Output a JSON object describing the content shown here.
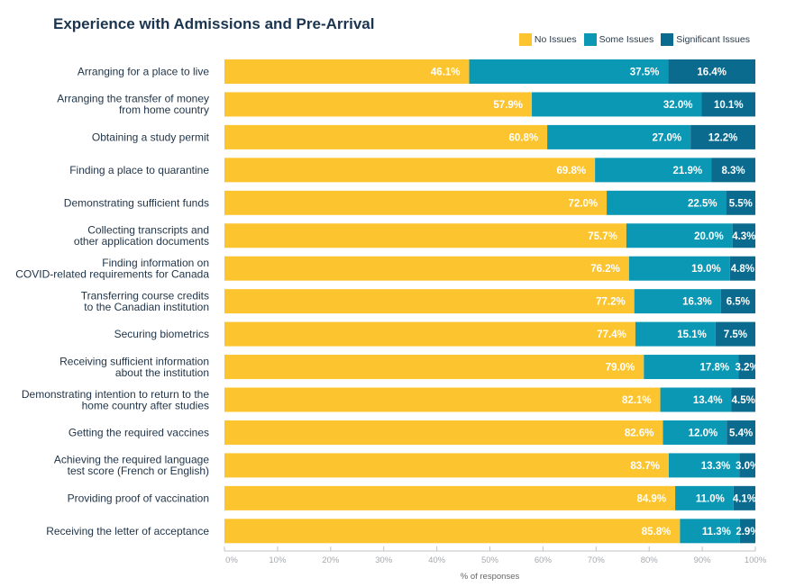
{
  "chart_data": {
    "type": "bar",
    "stacked": true,
    "orientation": "horizontal",
    "title": "Experience with Admissions and Pre-Arrival",
    "xlabel": "% of responses",
    "ylabel": "",
    "xlim": [
      0,
      100
    ],
    "xticks": [
      "0%",
      "10%",
      "20%",
      "30%",
      "40%",
      "50%",
      "60%",
      "70%",
      "80%",
      "90%",
      "100%"
    ],
    "legend_position": "top-right",
    "categories": [
      [
        "Arranging for a place to live"
      ],
      [
        "Arranging the transfer of money",
        "from home country"
      ],
      [
        "Obtaining a study permit"
      ],
      [
        "Finding a place to quarantine"
      ],
      [
        "Demonstrating sufficient funds"
      ],
      [
        "Collecting transcripts and",
        "other application documents"
      ],
      [
        "Finding information on",
        "COVID-related requirements for Canada"
      ],
      [
        "Transferring course credits",
        "to the Canadian institution"
      ],
      [
        "Securing biometrics"
      ],
      [
        "Receiving sufficient information",
        "about the institution"
      ],
      [
        "Demonstrating intention to return to the",
        "home country after studies"
      ],
      [
        "Getting the required vaccines"
      ],
      [
        "Achieving the required language",
        "test score (French or English)"
      ],
      [
        "Providing proof of vaccination"
      ],
      [
        "Receiving the letter of acceptance"
      ]
    ],
    "series": [
      {
        "name": "No Issues",
        "color": "#FCC42F",
        "values": [
          46.1,
          57.9,
          60.8,
          69.8,
          72.0,
          75.7,
          76.2,
          77.2,
          77.4,
          79.0,
          82.1,
          82.6,
          83.7,
          84.9,
          85.8
        ]
      },
      {
        "name": "Some Issues",
        "color": "#0A98B4",
        "values": [
          37.5,
          32.0,
          27.0,
          21.9,
          22.5,
          20.0,
          19.0,
          16.3,
          15.1,
          17.8,
          13.4,
          12.0,
          13.3,
          11.0,
          11.3
        ]
      },
      {
        "name": "Significant Issues",
        "color": "#0B6B8F",
        "values": [
          16.4,
          10.1,
          12.2,
          8.3,
          5.5,
          4.3,
          4.8,
          6.5,
          7.5,
          3.2,
          4.5,
          5.4,
          3.0,
          4.1,
          2.9
        ]
      }
    ]
  }
}
